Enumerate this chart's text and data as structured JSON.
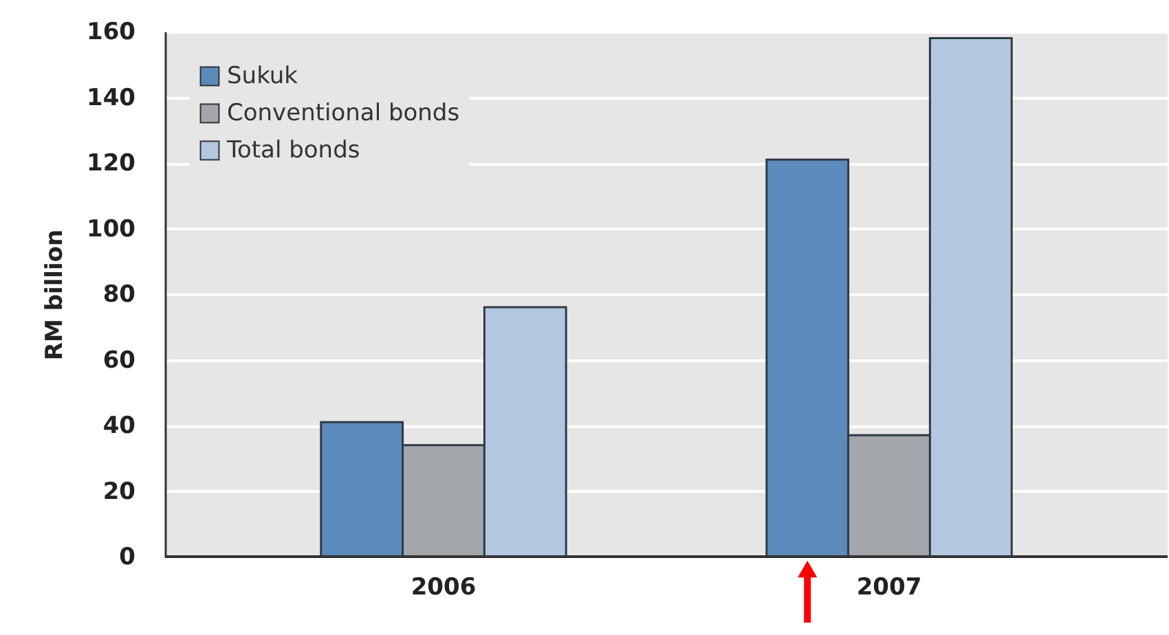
{
  "chart_data": {
    "type": "bar",
    "ylabel": "RM billion",
    "categories": [
      "2006",
      "2007"
    ],
    "series": [
      {
        "name": "Sukuk",
        "color": "#5b8abb",
        "values": [
          41,
          121
        ]
      },
      {
        "name": "Conventional bonds",
        "color": "#a3a7ab",
        "values": [
          34,
          37
        ]
      },
      {
        "name": "Total bonds",
        "color": "#b3c8e0",
        "values": [
          76,
          158
        ]
      }
    ],
    "ylim": [
      0,
      160
    ],
    "yticks": [
      0,
      20,
      40,
      60,
      80,
      100,
      120,
      140,
      160
    ],
    "grid": "y",
    "legend": "top left"
  }
}
